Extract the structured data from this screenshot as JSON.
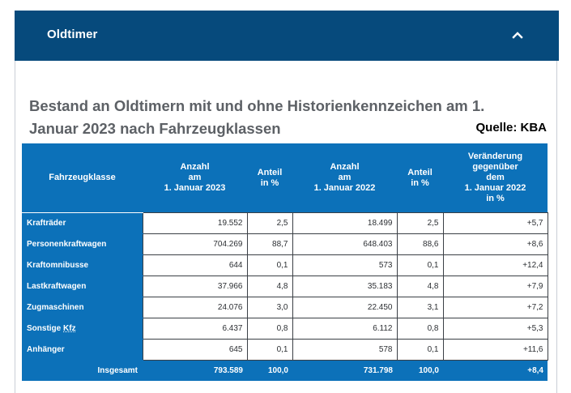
{
  "accordion": {
    "title": "Oldtimer",
    "toggle_icon": "chevron-up-icon"
  },
  "heading": "Bestand an Oldtimern mit und ohne Historienkennzeichen am 1. Januar 2023 nach Fahrzeugklassen",
  "source": "Quelle: KBA",
  "colors": {
    "header_bar": "#064a7c",
    "table_blue": "#0c71b9",
    "heading_text": "#5d6166"
  },
  "table": {
    "columns": [
      "Fahrzeugklasse",
      "Anzahl\nam\n1. Januar 2023",
      "Anteil\nin %",
      "Anzahl\nam\n1. Januar 2022",
      "Anteil\nin %",
      "Veränderung\ngegenüber\ndem\n1. Januar 2022\nin %"
    ],
    "rows": [
      {
        "label": "Krafträder",
        "count_2023": "19.552",
        "share_2023": "2,5",
        "count_2022": "18.499",
        "share_2022": "2,5",
        "change": "+5,7"
      },
      {
        "label": "Personenkraftwagen",
        "count_2023": "704.269",
        "share_2023": "88,7",
        "count_2022": "648.403",
        "share_2022": "88,6",
        "change": "+8,6"
      },
      {
        "label": "Kraftomnibusse",
        "count_2023": "644",
        "share_2023": "0,1",
        "count_2022": "573",
        "share_2022": "0,1",
        "change": "+12,4"
      },
      {
        "label": "Lastkraftwagen",
        "count_2023": "37.966",
        "share_2023": "4,8",
        "count_2022": "35.183",
        "share_2022": "4,8",
        "change": "+7,9"
      },
      {
        "label": "Zugmaschinen",
        "count_2023": "24.076",
        "share_2023": "3,0",
        "count_2022": "22.450",
        "share_2022": "3,1",
        "change": "+7,2"
      },
      {
        "label_prefix": "Sonstige",
        "label_abbr": "Kfz",
        "count_2023": "6.437",
        "share_2023": "0,8",
        "count_2022": "6.112",
        "share_2022": "0,8",
        "change": "+5,3"
      },
      {
        "label": "Anhänger",
        "count_2023": "645",
        "share_2023": "0,1",
        "count_2022": "578",
        "share_2022": "0,1",
        "change": "+11,6"
      }
    ],
    "total": {
      "label": "Insgesamt",
      "count_2023": "793.589",
      "share_2023": "100,0",
      "count_2022": "731.798",
      "share_2022": "100,0",
      "change": "+8,4"
    }
  }
}
